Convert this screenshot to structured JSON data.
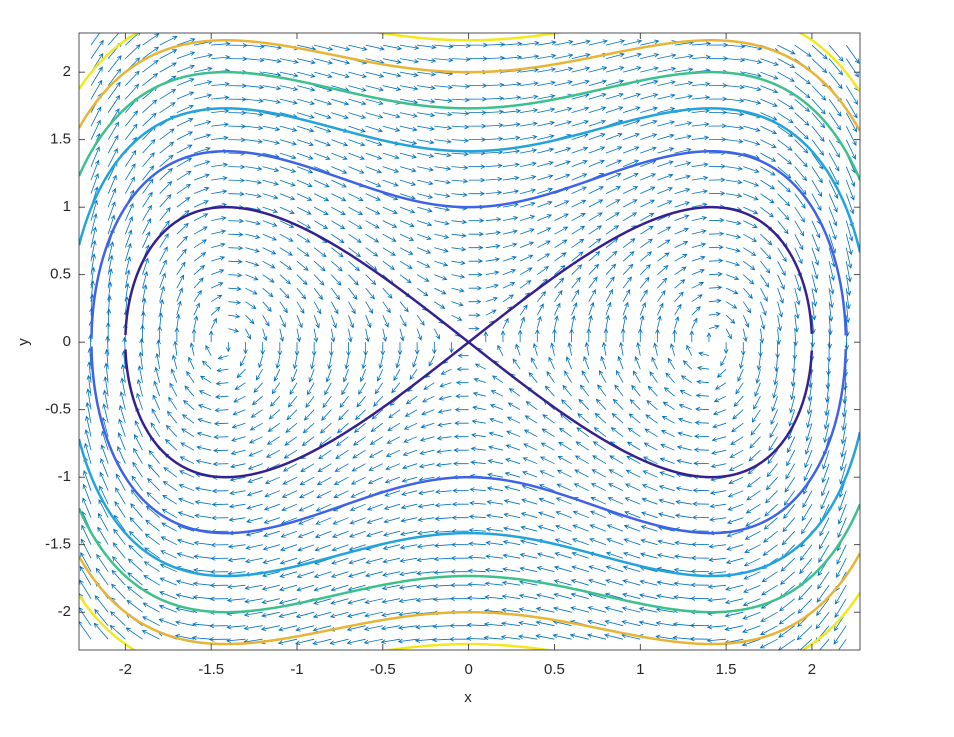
{
  "chart_data": {
    "type": "quiver-contour",
    "xlabel": "x",
    "ylabel": "y",
    "xlim": [
      -2.27,
      2.28
    ],
    "ylim": [
      -2.28,
      2.29
    ],
    "xticks": [
      -2,
      -1.5,
      -1,
      -0.5,
      0,
      0.5,
      1,
      1.5,
      2
    ],
    "yticks": [
      -2,
      -1.5,
      -1,
      -0.5,
      0,
      0.5,
      1,
      1.5,
      2
    ],
    "quiver": {
      "color": "#0072bd",
      "x": [
        -2.2,
        -2.1,
        -2,
        -1.9,
        -1.8,
        -1.7,
        -1.6,
        -1.5,
        -1.4,
        -1.3,
        -1.2,
        -1.1,
        -1,
        -0.9,
        -0.8,
        -0.7,
        -0.6,
        -0.5,
        -0.4,
        -0.3,
        -0.2,
        -0.1,
        0,
        0.1,
        0.2,
        0.3,
        0.4,
        0.5,
        0.6,
        0.7,
        0.8,
        0.9,
        1,
        1.1,
        1.2,
        1.3,
        1.4,
        1.5,
        1.6,
        1.7,
        1.8,
        1.9,
        2,
        2.1,
        2.2
      ],
      "y": [
        -2.2,
        -2.1,
        -2,
        -1.9,
        -1.8,
        -1.7,
        -1.6,
        -1.5,
        -1.4,
        -1.3,
        -1.2,
        -1.1,
        -1,
        -0.9,
        -0.8,
        -0.7,
        -0.6,
        -0.5,
        -0.4,
        -0.3,
        -0.2,
        -0.1,
        0,
        0.1,
        0.2,
        0.3,
        0.4,
        0.5,
        0.6,
        0.7,
        0.8,
        0.9,
        1,
        1.1,
        1.2,
        1.3,
        1.4,
        1.5,
        1.6,
        1.7,
        1.8,
        1.9,
        2,
        2.1,
        2.2
      ],
      "u": [
        -4.4,
        -4.2,
        -4,
        -3.8,
        -3.6,
        -3.4,
        -3.2,
        -3,
        -2.8,
        -2.6,
        -2.4,
        -2.2,
        -2,
        -1.8,
        -1.6,
        -1.4,
        -1.2,
        -1,
        -0.8,
        -0.6,
        -0.4,
        -0.2,
        0,
        0.2,
        0.4,
        0.6,
        0.8,
        1,
        1.2,
        1.4,
        1.6,
        1.8,
        2,
        2.2,
        2.4,
        2.6,
        2.8,
        3,
        3.2,
        3.4,
        3.6,
        3.8,
        4,
        4.2,
        4.4
      ],
      "v": [
        6.248,
        5.061,
        4,
        3.059,
        2.232,
        1.513,
        0.896,
        0.375,
        -0.056,
        -0.403,
        -0.672,
        -0.869,
        -1,
        -1.071,
        -1.088,
        -1.057,
        -0.984,
        -0.875,
        -0.736,
        -0.573,
        -0.392,
        -0.199,
        0,
        0.199,
        0.392,
        0.573,
        0.736,
        0.875,
        0.984,
        1.057,
        1.088,
        1.071,
        1,
        0.869,
        0.672,
        0.403,
        0.056,
        -0.375,
        -0.896,
        -1.513,
        -2.232,
        -3.059,
        -4,
        -5.061,
        -6.248
      ]
    },
    "contours": {
      "levels": [
        0,
        1,
        2,
        3,
        4,
        5
      ],
      "colors": [
        "#35208f",
        "#3f63e6",
        "#23a3dc",
        "#3cc08c",
        "#e8b434",
        "#f2e81c"
      ]
    }
  }
}
